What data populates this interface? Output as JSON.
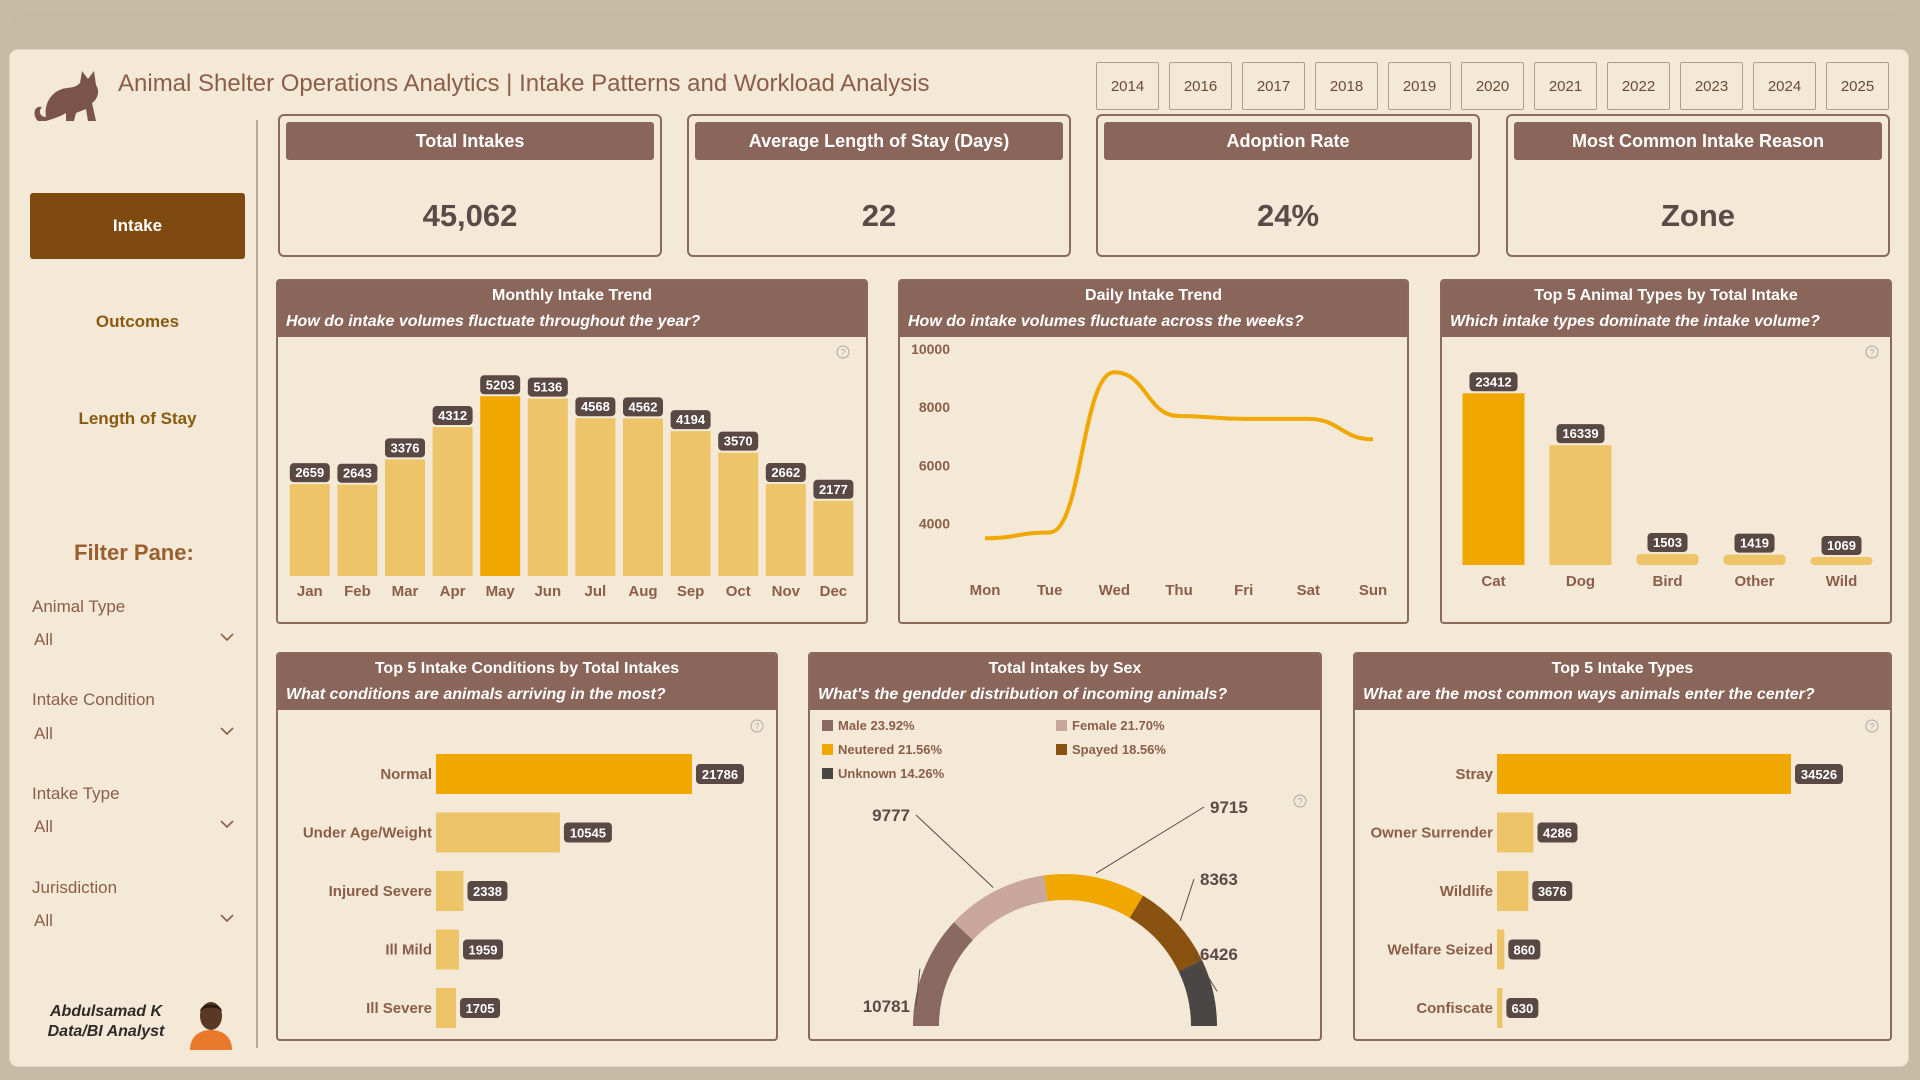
{
  "header": {
    "title": "Animal Shelter Operations Analytics | Intake Patterns and Workload Analysis"
  },
  "years": [
    "2014",
    "2016",
    "2017",
    "2018",
    "2019",
    "2020",
    "2021",
    "2022",
    "2023",
    "2024",
    "2025"
  ],
  "nav": {
    "active": "Intake",
    "items": [
      "Outcomes",
      "Length of Stay"
    ]
  },
  "filters": {
    "title": "Filter Pane:",
    "items": [
      {
        "label": "Animal Type",
        "value": "All"
      },
      {
        "label": "Intake Condition",
        "value": "All"
      },
      {
        "label": "Intake Type",
        "value": "All"
      },
      {
        "label": "Jurisdiction",
        "value": "All"
      }
    ]
  },
  "author": {
    "name": "Abdulsamad K",
    "role": "Data/BI Analyst"
  },
  "kpis": [
    {
      "label": "Total Intakes",
      "value": "45,062"
    },
    {
      "label": "Average Length of Stay (Days)",
      "value": "22"
    },
    {
      "label": "Adoption Rate",
      "value": "24%"
    },
    {
      "label": "Most Common Intake Reason",
      "value": "Zone"
    }
  ],
  "colors": {
    "highlight": "#f0a800",
    "bar": "#eec468",
    "header": "#8a665a",
    "brown": "#7e4a10"
  },
  "panels": {
    "monthly": {
      "title": "Monthly Intake Trend",
      "subtitle": "How do intake volumes fluctuate throughout the year?"
    },
    "daily": {
      "title": "Daily Intake Trend",
      "subtitle": "How do intake volumes fluctuate across the weeks?"
    },
    "animals": {
      "title": "Top 5 Animal Types by Total Intake",
      "subtitle": "Which intake types dominate the intake volume?"
    },
    "conditions": {
      "title": "Top 5 Intake Conditions by Total Intakes",
      "subtitle": "What conditions are animals arriving in the most?"
    },
    "sex": {
      "title": "Total Intakes by Sex",
      "subtitle": "What's the gendder distribution of incoming animals?"
    },
    "types": {
      "title": "Top 5 Intake Types",
      "subtitle": "What are the most common ways animals enter the center?"
    }
  },
  "chart_data": [
    {
      "id": "monthly",
      "type": "bar",
      "categories": [
        "Jan",
        "Feb",
        "Mar",
        "Apr",
        "May",
        "Jun",
        "Jul",
        "Aug",
        "Sep",
        "Oct",
        "Nov",
        "Dec"
      ],
      "values": [
        2659,
        2643,
        3376,
        4312,
        5203,
        5136,
        4568,
        4562,
        4194,
        3570,
        2662,
        2177
      ],
      "highlight_index": 4,
      "ylim": [
        0,
        5500
      ]
    },
    {
      "id": "daily",
      "type": "line",
      "categories": [
        "Mon",
        "Tue",
        "Wed",
        "Thu",
        "Fri",
        "Sat",
        "Sun"
      ],
      "values": [
        3500,
        3700,
        9200,
        7700,
        7600,
        7600,
        6900
      ],
      "yticks": [
        4000,
        6000,
        8000,
        10000
      ],
      "ylim": [
        3200,
        10000
      ]
    },
    {
      "id": "animals",
      "type": "bar",
      "categories": [
        "Cat",
        "Dog",
        "Bird",
        "Other",
        "Wild"
      ],
      "values": [
        23412,
        16339,
        1503,
        1419,
        1069
      ],
      "highlight_index": 0,
      "ylim": [
        0,
        24000
      ]
    },
    {
      "id": "conditions",
      "type": "bar",
      "orientation": "horizontal",
      "categories": [
        "Normal",
        "Under Age/Weight",
        "Injured Severe",
        "Ill Mild",
        "Ill Severe"
      ],
      "values": [
        21786,
        10545,
        2338,
        1959,
        1705
      ],
      "highlight_index": 0
    },
    {
      "id": "sex",
      "type": "pie",
      "style": "half-donut",
      "legend": [
        {
          "label": "Male 23.92%",
          "color": "#8a6a60"
        },
        {
          "label": "Female 21.70%",
          "color": "#c9a79b"
        },
        {
          "label": "Neutered 21.56%",
          "color": "#f0a800"
        },
        {
          "label": "Spayed 18.56%",
          "color": "#8a5210"
        },
        {
          "label": "Unknown 14.26%",
          "color": "#4a4646"
        }
      ],
      "slices": [
        {
          "name": "Male",
          "value": 10781,
          "color": "#8a6a60"
        },
        {
          "name": "Female",
          "value": 9777,
          "color": "#c9a79b"
        },
        {
          "name": "Neutered",
          "value": 9715,
          "color": "#f0a800"
        },
        {
          "name": "Spayed",
          "value": 8363,
          "color": "#8a5210"
        },
        {
          "name": "Unknown",
          "value": 6426,
          "color": "#4a4646"
        }
      ]
    },
    {
      "id": "types",
      "type": "bar",
      "orientation": "horizontal",
      "categories": [
        "Stray",
        "Owner Surrender",
        "Wildlife",
        "Welfare Seized",
        "Confiscate"
      ],
      "values": [
        34526,
        4286,
        3676,
        860,
        630
      ],
      "highlight_index": 0
    }
  ]
}
